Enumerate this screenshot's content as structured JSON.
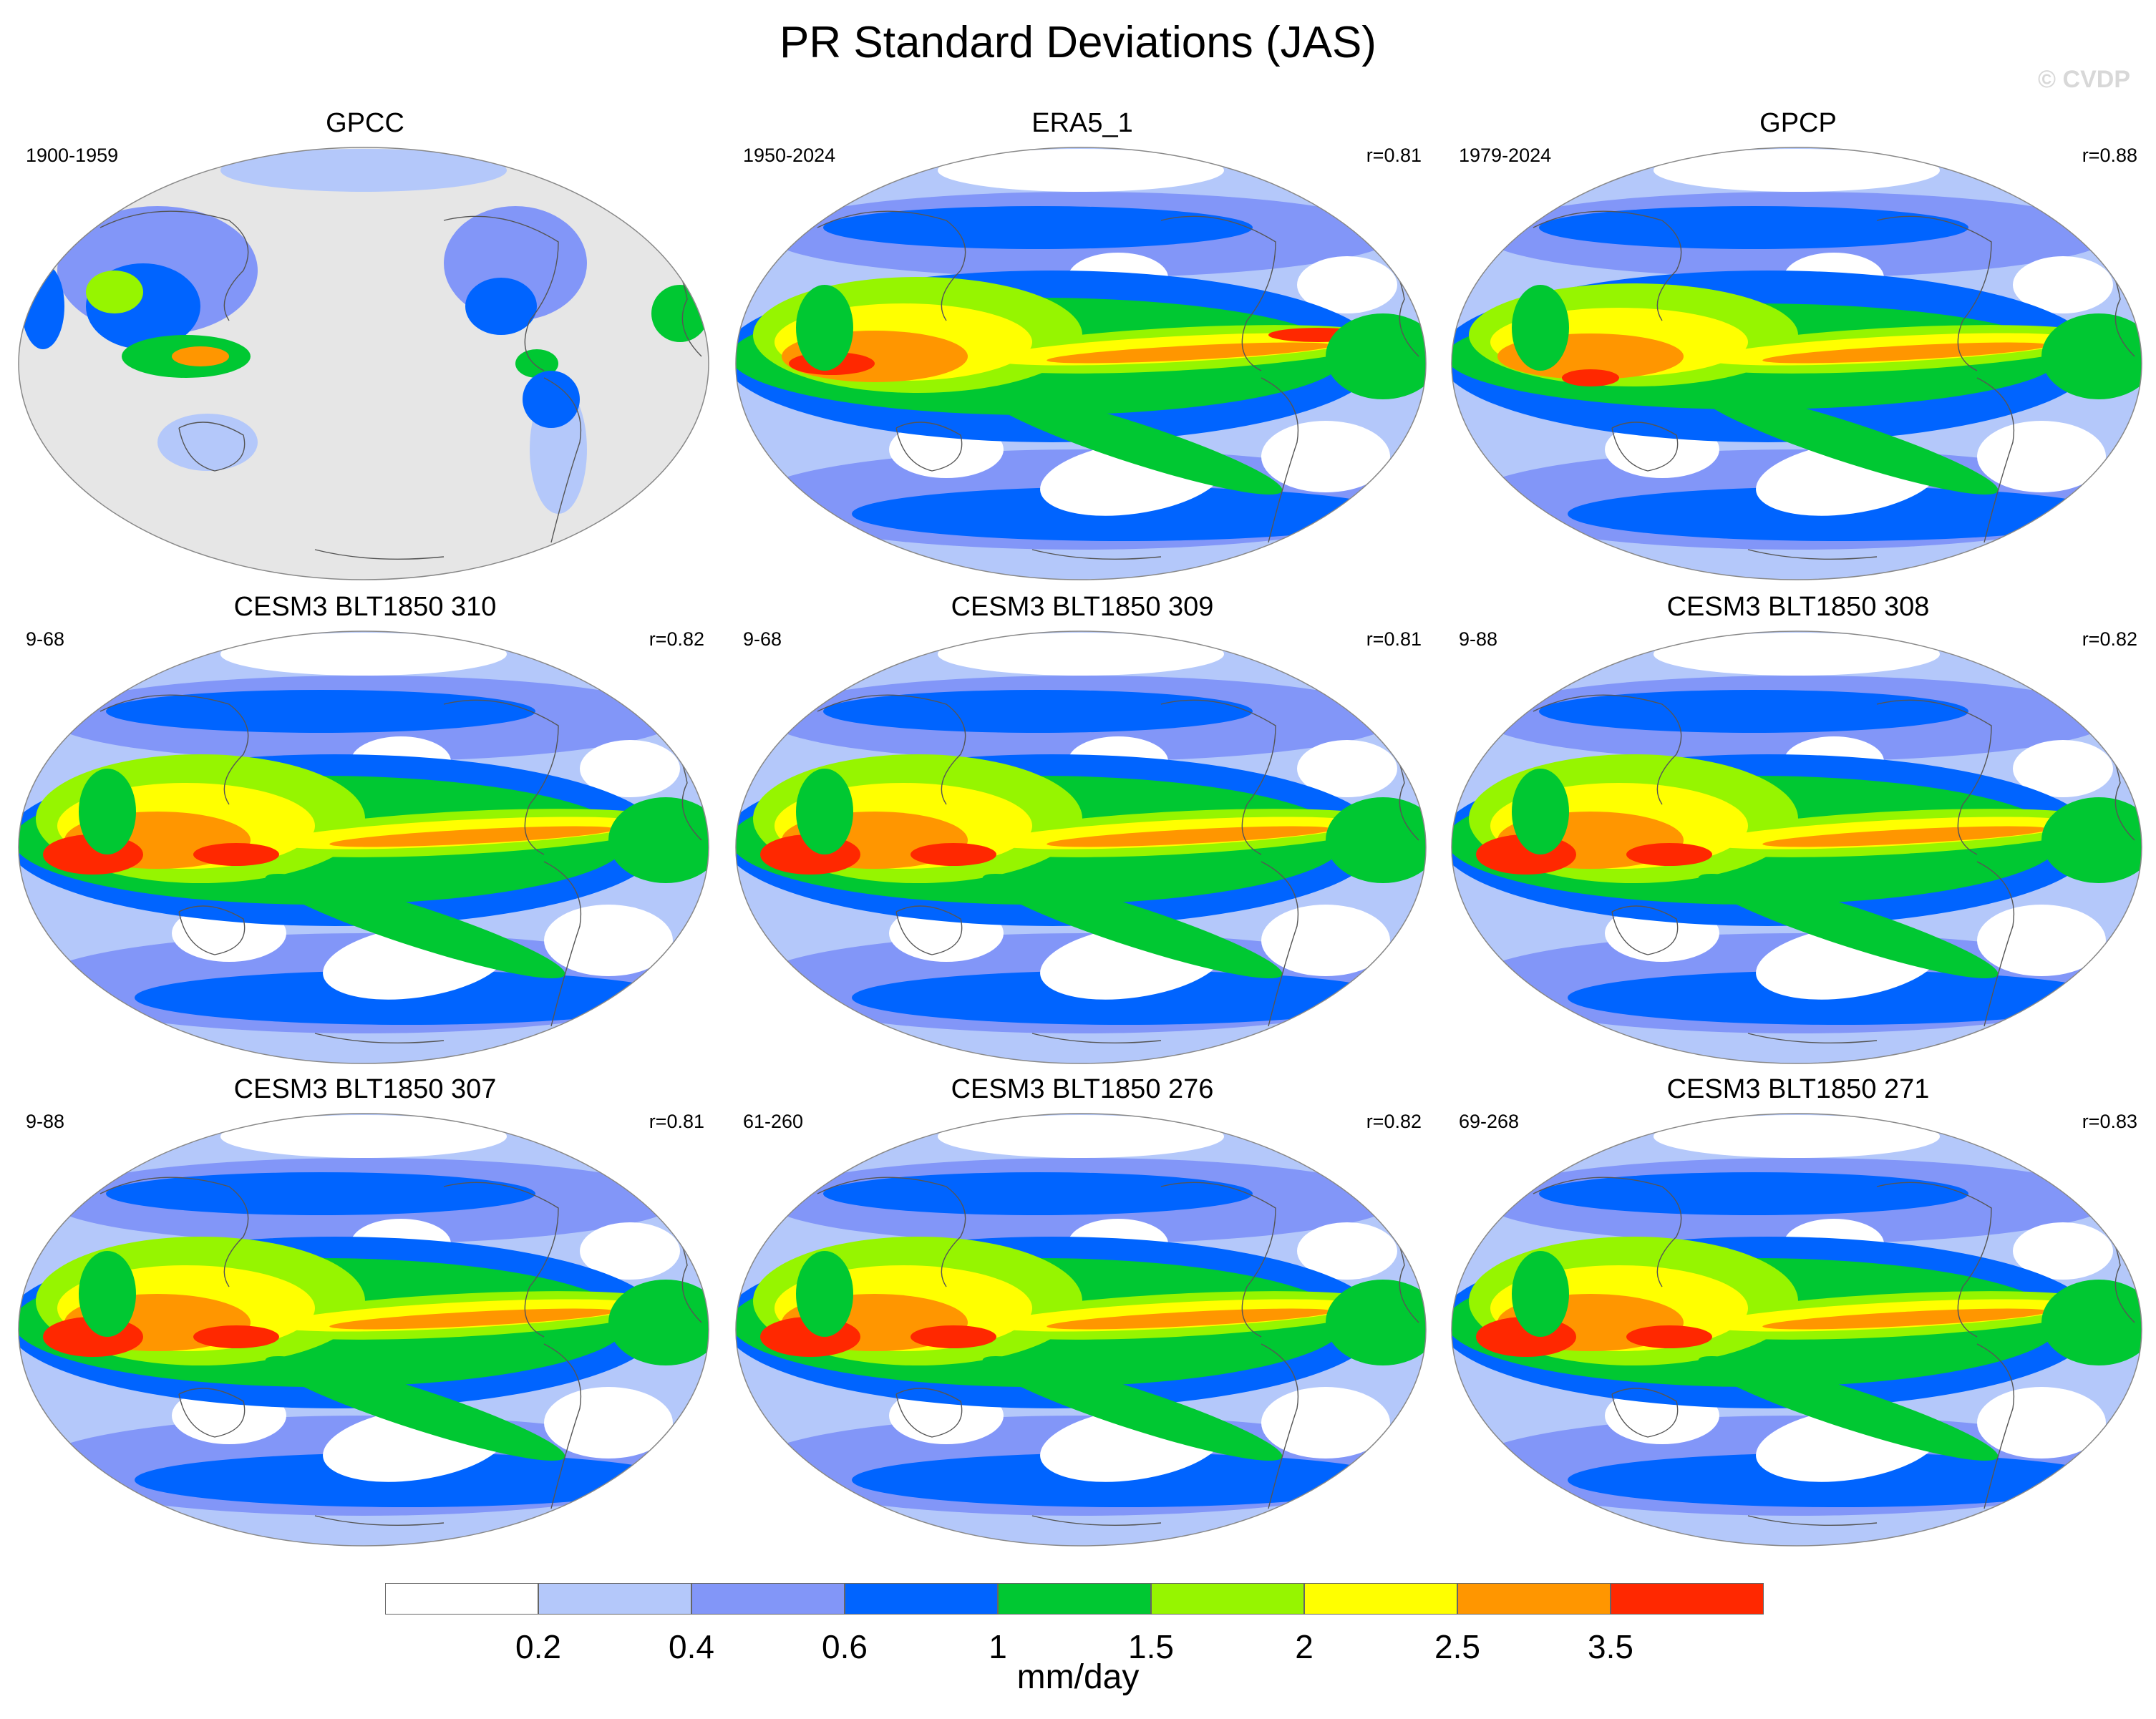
{
  "title": "PR Standard Deviations (JAS)",
  "watermark": "© CVDP",
  "panels": [
    {
      "title": "GPCC",
      "years": "1900-1959",
      "corr": "",
      "style": "obs_land"
    },
    {
      "title": "ERA5_1",
      "years": "1950-2024",
      "corr": "r=0.81",
      "style": "reanalysis"
    },
    {
      "title": "GPCP",
      "years": "1979-2024",
      "corr": "r=0.88",
      "style": "gpcp"
    },
    {
      "title": "CESM3 BLT1850 310",
      "years": "9-68",
      "corr": "r=0.82",
      "style": "model"
    },
    {
      "title": "CESM3 BLT1850 309",
      "years": "9-68",
      "corr": "r=0.81",
      "style": "model"
    },
    {
      "title": "CESM3 BLT1850 308",
      "years": "9-88",
      "corr": "r=0.82",
      "style": "model"
    },
    {
      "title": "CESM3 BLT1850 307",
      "years": "9-88",
      "corr": "r=0.81",
      "style": "model"
    },
    {
      "title": "CESM3 BLT1850 276",
      "years": "61-260",
      "corr": "r=0.82",
      "style": "model"
    },
    {
      "title": "CESM3 BLT1850 271",
      "years": "69-268",
      "corr": "r=0.83",
      "style": "model"
    }
  ],
  "colorbar": {
    "levels": [
      "0.2",
      "0.4",
      "0.6",
      "1",
      "1.5",
      "2",
      "2.5",
      "3.5"
    ],
    "colors": [
      "#ffffff",
      "#b4c8fa",
      "#8296f8",
      "#0064ff",
      "#00c832",
      "#96f500",
      "#ffff00",
      "#ff9600",
      "#ff2800"
    ],
    "units": "mm/day"
  },
  "colors": {
    "missing_land": "#e6e6e6",
    "coastline": "#555555"
  }
}
